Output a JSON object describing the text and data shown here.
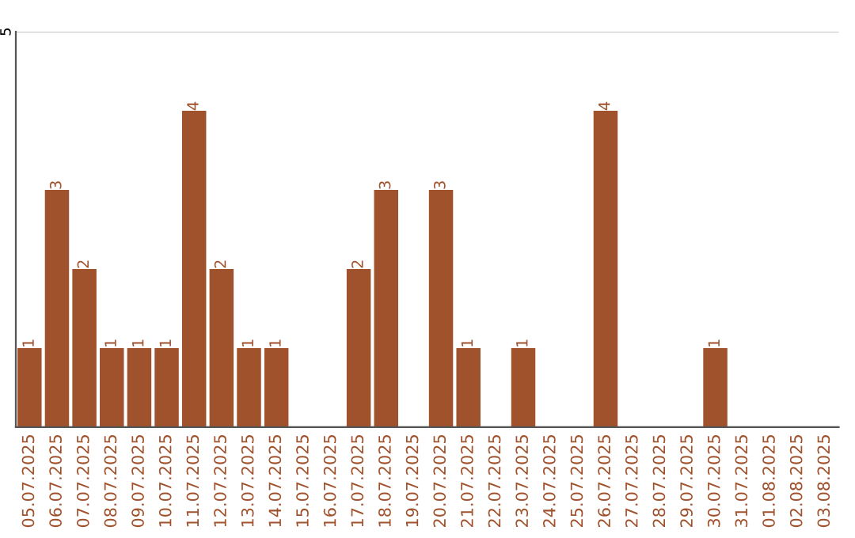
{
  "chart_data": {
    "type": "bar",
    "categories": [
      "05.07.2025",
      "06.07.2025",
      "07.07.2025",
      "08.07.2025",
      "09.07.2025",
      "10.07.2025",
      "11.07.2025",
      "12.07.2025",
      "13.07.2025",
      "14.07.2025",
      "15.07.2025",
      "16.07.2025",
      "17.07.2025",
      "18.07.2025",
      "19.07.2025",
      "20.07.2025",
      "21.07.2025",
      "22.07.2025",
      "23.07.2025",
      "24.07.2025",
      "25.07.2025",
      "26.07.2025",
      "27.07.2025",
      "28.07.2025",
      "29.07.2025",
      "30.07.2025",
      "31.07.2025",
      "01.08.2025",
      "02.08.2025",
      "03.08.2025"
    ],
    "values": [
      1,
      3,
      2,
      1,
      1,
      1,
      4,
      2,
      1,
      1,
      0,
      0,
      2,
      3,
      0,
      3,
      1,
      0,
      1,
      0,
      0,
      4,
      0,
      0,
      0,
      1,
      0,
      0,
      0,
      0
    ],
    "value_labels": [
      "1",
      "3",
      "2",
      "1",
      "1",
      "1",
      "4",
      "2",
      "1",
      "1",
      null,
      null,
      "2",
      "3",
      null,
      "3",
      "1",
      null,
      "1",
      null,
      null,
      "4",
      null,
      null,
      null,
      "1",
      null,
      null,
      null,
      null
    ],
    "color": "#a0522d",
    "ylim": [
      0,
      5
    ],
    "yticks": [
      {
        "value": 0,
        "label": null
      },
      5
    ],
    "grid": "y"
  }
}
